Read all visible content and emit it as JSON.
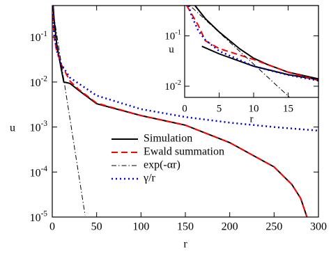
{
  "chart_data": [
    {
      "type": "line",
      "xlabel": "r",
      "ylabel": "u",
      "log_y": true,
      "xlim": [
        0,
        300
      ],
      "xticks": [
        0,
        50,
        100,
        150,
        200,
        250,
        300
      ],
      "ylim": [
        1e-05,
        0.5
      ],
      "yticks": [
        {
          "value": 1e-05,
          "label": "10^-5"
        },
        {
          "value": 0.0001,
          "label": "10^-4"
        },
        {
          "value": 0.001,
          "label": "10^-3"
        },
        {
          "value": 0.01,
          "label": "10^-2"
        },
        {
          "value": 0.1,
          "label": "10^-1"
        }
      ],
      "legend": "center",
      "series": [
        {
          "name": "Simulation",
          "color": "#000000",
          "dash": "none",
          "width": 2,
          "x": [
            1,
            2,
            5,
            10,
            13,
            20,
            30,
            50,
            100,
            150,
            200,
            250,
            270,
            280,
            287
          ],
          "values": [
            0.5,
            0.25,
            0.07,
            0.02,
            0.01,
            0.0093,
            0.0065,
            0.0033,
            0.0018,
            0.0011,
            0.00045,
            0.00013,
            5.3e-05,
            2.6e-05,
            1e-05
          ]
        },
        {
          "name": "Ewald summation",
          "color": "#ff0000",
          "dash": "9,5",
          "width": 2,
          "x": [
            0.3,
            2,
            5,
            10,
            20,
            30,
            50,
            100,
            150,
            200,
            250,
            270,
            280,
            287
          ],
          "values": [
            0.5,
            0.1,
            0.05,
            0.025,
            0.0105,
            0.0068,
            0.0034,
            0.0018,
            0.0011,
            0.00045,
            0.00013,
            5.3e-05,
            2.6e-05,
            1e-05
          ]
        },
        {
          "name": "exp(-αr)",
          "color": "#000000",
          "dash": "7,3,1.5,3",
          "width": 1,
          "x": [
            0,
            10,
            20,
            30,
            37
          ],
          "values": [
            0.5,
            0.027,
            0.0015,
            8.3e-05,
            1.1e-05
          ]
        },
        {
          "name": "γ/r",
          "color": "#0000cc",
          "dash": "2,4",
          "width": 2.5,
          "x": [
            0.5,
            1,
            2,
            5,
            10,
            20,
            50,
            100,
            150,
            200,
            250,
            300
          ],
          "values": [
            0.5,
            0.25,
            0.125,
            0.05,
            0.025,
            0.0125,
            0.005,
            0.0025,
            0.00167,
            0.00125,
            0.001,
            0.00083
          ]
        }
      ]
    },
    {
      "type": "line",
      "xlabel": "r",
      "ylabel": "u",
      "log_y": true,
      "xlim": [
        0,
        19.4
      ],
      "xticks": [
        0,
        5,
        10,
        15
      ],
      "ylim": [
        0.006,
        0.4
      ],
      "yticks": [
        {
          "value": 0.01,
          "label": "10^-2"
        },
        {
          "value": 0.1,
          "label": "10^-1"
        }
      ],
      "series": [
        {
          "color": "#000000",
          "dash": "none",
          "width": 2,
          "x": [
            1.5,
            3,
            5,
            8,
            10,
            12,
            15,
            19.4
          ],
          "values": [
            0.4,
            0.22,
            0.12,
            0.055,
            0.036,
            0.027,
            0.019,
            0.014
          ]
        },
        {
          "color": "#000000",
          "dash": "none",
          "width": 2,
          "x": [
            2.5,
            5,
            10,
            15,
            19.4
          ],
          "values": [
            0.062,
            0.044,
            0.025,
            0.017,
            0.0135
          ]
        },
        {
          "color": "#ff0000",
          "dash": "9,5",
          "width": 2,
          "x": [
            0.3,
            2,
            3,
            5,
            10,
            15,
            19.4
          ],
          "values": [
            0.4,
            0.16,
            0.08,
            0.056,
            0.034,
            0.019,
            0.013
          ]
        },
        {
          "color": "#000000",
          "dash": "7,3,1.5,3",
          "width": 1,
          "x": [
            0,
            5,
            10,
            15,
            16
          ],
          "values": [
            0.5,
            0.117,
            0.0275,
            0.0064,
            0.0048
          ]
        },
        {
          "color": "#0000cc",
          "dash": "2,4",
          "width": 2.5,
          "x": [
            0.6,
            1,
            2,
            3,
            5,
            10,
            15,
            19.4
          ],
          "values": [
            0.4,
            0.25,
            0.125,
            0.083,
            0.05,
            0.025,
            0.0167,
            0.0129
          ]
        }
      ]
    }
  ]
}
